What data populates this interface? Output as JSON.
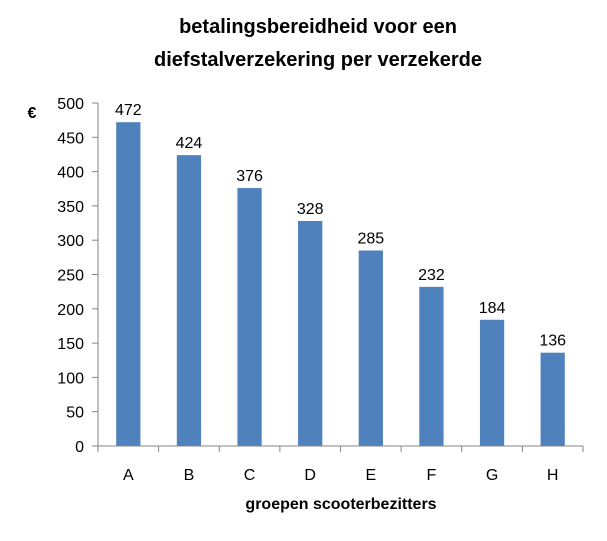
{
  "chart_data": {
    "type": "bar",
    "title_lines": [
      "betalingsbereidheid voor een",
      "diefstalverzekering per verzekerde"
    ],
    "ylabel": "€",
    "xlabel": "groepen scooterbezitters",
    "categories": [
      "A",
      "B",
      "C",
      "D",
      "E",
      "F",
      "G",
      "H"
    ],
    "values": [
      472,
      424,
      376,
      328,
      285,
      232,
      184,
      136
    ],
    "ylim": [
      0,
      500
    ],
    "yticks": [
      0,
      50,
      100,
      150,
      200,
      250,
      300,
      350,
      400,
      450,
      500
    ],
    "data_labels": true,
    "grid": false,
    "legend": "none",
    "bar_color": "#4F81BD"
  }
}
